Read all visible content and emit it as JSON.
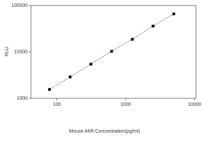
{
  "chart_data": {
    "type": "scatter",
    "x_label": "Mouse AhR Concentration(pg/ml)",
    "y_label": "RLU",
    "x": [
      78.125,
      156.25,
      312.5,
      625,
      1250,
      2500,
      5000
    ],
    "series": [
      {
        "values": [
          1550,
          2900,
          5450,
          10300,
          18700,
          36000,
          66000
        ],
        "color": "#111111"
      }
    ],
    "xlim": [
      42,
      10500
    ],
    "ylim": [
      1000,
      100000
    ],
    "xticks": [
      100,
      1000,
      10000
    ],
    "yticks": [
      1000,
      10000,
      100000
    ],
    "log_x": true,
    "log_y": true,
    "grid": false
  }
}
